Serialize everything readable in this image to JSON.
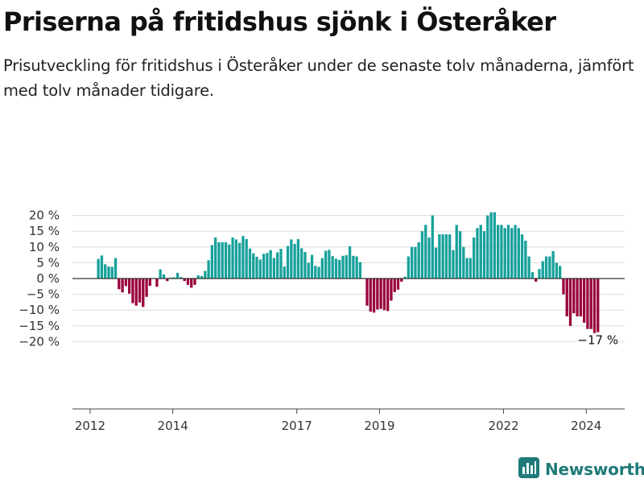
{
  "title": "Priserna på fritidshus sjönk i Österåker",
  "subtitle": "Prisutveckling för fritidshus i Österåker under de senaste tolv månaderna, jämfört med tolv månader tidigare.",
  "brand": "Newsworthy",
  "colors": {
    "positive": "#17a19b",
    "negative": "#99003c",
    "grid": "#dcdcdc",
    "zero_line": "#333333",
    "brand": "#1f7a78"
  },
  "chart_data": {
    "type": "bar",
    "title": "",
    "xlabel": "",
    "ylabel": "",
    "ylim": [
      -20,
      20
    ],
    "y_ticks": [
      -20,
      -15,
      -10,
      -5,
      0,
      5,
      10,
      15,
      20
    ],
    "y_tick_labels": [
      "−20 %",
      "−15 %",
      "−10 %",
      "−5 %",
      "0 %",
      "5 %",
      "10 %",
      "15 %",
      "20 %"
    ],
    "x_ticks": [
      "2012",
      "2014",
      "2017",
      "2019",
      "2022",
      "2024"
    ],
    "x_start": "2012-03",
    "frequency": "monthly",
    "grid": true,
    "final_label": "−17 %",
    "values": [
      6.2,
      7.3,
      4.5,
      3.8,
      3.7,
      6.5,
      -3.4,
      -4.4,
      -2.4,
      -4.8,
      -7.8,
      -8.6,
      -7.6,
      -9.0,
      -5.8,
      -2.3,
      -0.1,
      -2.6,
      2.9,
      1.3,
      -0.8,
      0.3,
      0.4,
      1.8,
      0.5,
      -0.8,
      -2.0,
      -2.9,
      -2.0,
      1.0,
      0.8,
      2.4,
      5.8,
      10.6,
      13.0,
      11.5,
      11.5,
      11.5,
      10.8,
      13.0,
      12.4,
      11.3,
      13.5,
      12.5,
      9.5,
      8.0,
      6.9,
      6.0,
      7.8,
      8.1,
      9.0,
      6.5,
      8.3,
      9.4,
      3.8,
      10.3,
      12.4,
      11.0,
      12.5,
      9.6,
      8.4,
      5.0,
      7.5,
      4.0,
      3.7,
      6.5,
      8.8,
      9.1,
      7.1,
      6.3,
      5.9,
      7.2,
      7.4,
      10.2,
      7.2,
      7.0,
      5.2,
      0.0,
      -8.6,
      -10.5,
      -10.8,
      -9.8,
      -9.6,
      -10.0,
      -10.3,
      -7.0,
      -4.3,
      -3.5,
      -1.0,
      0.6,
      7.0,
      10.0,
      10.0,
      11.5,
      15.0,
      17.0,
      13.0,
      20.0,
      9.8,
      14.0,
      14.0,
      14.0,
      14.0,
      9.0,
      17.0,
      15.0,
      10.0,
      6.5,
      6.5,
      13.0,
      16.0,
      17.0,
      15.0,
      20.0,
      21.0,
      21.0,
      17.0,
      17.0,
      16.0,
      17.0,
      16.0,
      17.0,
      16.0,
      14.0,
      12.0,
      7.0,
      2.0,
      -1.0,
      3.0,
      5.5,
      7.0,
      7.0,
      8.7,
      5.0,
      4.0,
      -5.0,
      -12.0,
      -15.0,
      -11.0,
      -12.0,
      -12.0,
      -14.0,
      -16.0,
      -16.0,
      -18.0,
      -17.0
    ]
  }
}
